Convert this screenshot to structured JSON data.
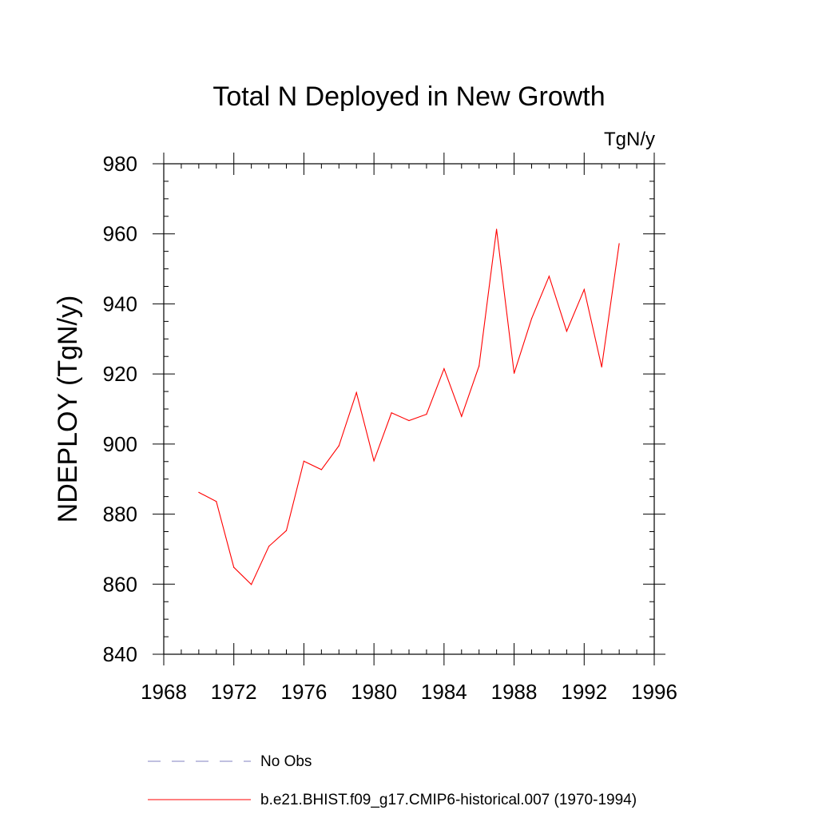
{
  "chart_data": {
    "type": "line",
    "title": "Total N Deployed in New Growth",
    "units": "TgN/y",
    "xlabel": "",
    "ylabel": "NDEPLOY  (TgN/y)",
    "xlim": [
      1968,
      1996
    ],
    "ylim": [
      840,
      980
    ],
    "xticks": [
      1968,
      1972,
      1976,
      1980,
      1984,
      1988,
      1992,
      1996
    ],
    "yticks": [
      840,
      860,
      880,
      900,
      920,
      940,
      960,
      980
    ],
    "grid": false,
    "legend_position": "bottom",
    "colors": {
      "model": "#ff0000",
      "obs": "#8080c0"
    },
    "series": [
      {
        "name": "b.e21.BHIST.f09_g17.CMIP6-historical.007 (1970-1994)",
        "x": [
          1970,
          1971,
          1972,
          1973,
          1974,
          1975,
          1976,
          1977,
          1978,
          1979,
          1980,
          1981,
          1982,
          1983,
          1984,
          1985,
          1986,
          1987,
          1988,
          1989,
          1990,
          1991,
          1992,
          1993,
          1994
        ],
        "y": [
          886.2,
          883.6,
          864.8,
          859.9,
          870.8,
          875.3,
          895.1,
          892.7,
          899.5,
          914.7,
          895.2,
          908.9,
          906.7,
          908.5,
          921.5,
          907.9,
          922.3,
          961.3,
          920.2,
          935.8,
          947.9,
          932.2,
          944.1,
          922.0,
          957.2
        ]
      }
    ],
    "legend": [
      {
        "label": "No Obs",
        "style": "dashed"
      },
      {
        "label": "b.e21.BHIST.f09_g17.CMIP6-historical.007 (1970-1994)",
        "style": "solid"
      }
    ]
  }
}
